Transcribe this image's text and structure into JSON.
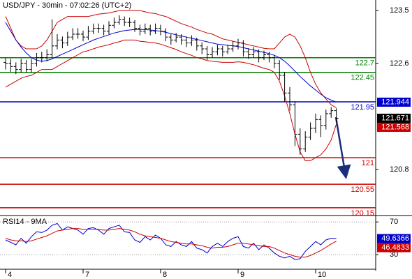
{
  "chart_data": [
    {
      "type": "ohlc",
      "title": "USD/JPY - 30min - 07:02:26 (UTC+2)",
      "categories": [
        "4",
        null,
        null,
        null,
        null,
        null,
        null,
        null,
        null,
        null,
        null,
        null,
        null,
        null,
        null,
        "7",
        null,
        null,
        null,
        null,
        null,
        null,
        null,
        null,
        null,
        null,
        null,
        null,
        null,
        null,
        "8",
        null,
        null,
        null,
        null,
        null,
        null,
        null,
        null,
        null,
        null,
        null,
        null,
        null,
        null,
        "9",
        null,
        null,
        null,
        null,
        null,
        null,
        null,
        null,
        null,
        null,
        null,
        null,
        null,
        null,
        "10",
        null,
        null,
        null,
        null
      ],
      "ohlc": [
        [
          122.62,
          122.7,
          122.5,
          122.6
        ],
        [
          122.6,
          122.68,
          122.46,
          122.55
        ],
        [
          122.55,
          122.62,
          122.42,
          122.5
        ],
        [
          122.5,
          122.68,
          122.44,
          122.6
        ],
        [
          122.6,
          122.66,
          122.44,
          122.5
        ],
        [
          122.5,
          122.68,
          122.44,
          122.6
        ],
        [
          122.6,
          122.78,
          122.55,
          122.7
        ],
        [
          122.7,
          122.8,
          122.62,
          122.7
        ],
        [
          122.7,
          122.84,
          122.64,
          122.75
        ],
        [
          122.75,
          123.35,
          122.7,
          122.9
        ],
        [
          122.9,
          123.1,
          122.84,
          123.0
        ],
        [
          123.0,
          123.06,
          122.86,
          122.95
        ],
        [
          122.95,
          123.14,
          122.9,
          123.05
        ],
        [
          123.05,
          123.2,
          123.0,
          123.1
        ],
        [
          123.1,
          123.2,
          123.02,
          123.1
        ],
        [
          123.1,
          123.16,
          122.98,
          123.05
        ],
        [
          123.05,
          123.24,
          123.0,
          123.15
        ],
        [
          123.15,
          123.28,
          123.1,
          123.2
        ],
        [
          123.2,
          123.28,
          123.12,
          123.2
        ],
        [
          123.2,
          123.26,
          123.08,
          123.15
        ],
        [
          123.15,
          123.32,
          123.1,
          123.25
        ],
        [
          123.25,
          123.38,
          123.2,
          123.3
        ],
        [
          123.3,
          123.42,
          123.26,
          123.35
        ],
        [
          123.35,
          123.4,
          123.24,
          123.3
        ],
        [
          123.3,
          123.38,
          123.22,
          123.3
        ],
        [
          123.3,
          123.34,
          123.14,
          123.2
        ],
        [
          123.2,
          123.26,
          123.08,
          123.15
        ],
        [
          123.15,
          123.28,
          123.1,
          123.2
        ],
        [
          123.2,
          123.26,
          123.08,
          123.15
        ],
        [
          123.15,
          123.28,
          123.1,
          123.2
        ],
        [
          123.2,
          123.26,
          123.08,
          123.15
        ],
        [
          123.15,
          123.2,
          122.98,
          123.05
        ],
        [
          123.05,
          123.1,
          122.92,
          123.0
        ],
        [
          123.0,
          123.12,
          122.96,
          123.05
        ],
        [
          123.05,
          123.1,
          122.92,
          123.0
        ],
        [
          123.0,
          123.06,
          122.88,
          122.95
        ],
        [
          122.95,
          123.08,
          122.9,
          123.0
        ],
        [
          123.0,
          123.04,
          122.82,
          122.9
        ],
        [
          122.9,
          122.96,
          122.76,
          122.85
        ],
        [
          122.85,
          122.9,
          122.66,
          122.75
        ],
        [
          122.75,
          122.88,
          122.7,
          122.8
        ],
        [
          122.8,
          122.92,
          122.74,
          122.85
        ],
        [
          122.85,
          122.9,
          122.72,
          122.8
        ],
        [
          122.8,
          122.92,
          122.76,
          122.85
        ],
        [
          122.85,
          122.98,
          122.8,
          122.9
        ],
        [
          122.9,
          123.02,
          122.84,
          122.95
        ],
        [
          122.95,
          123.0,
          122.72,
          122.8
        ],
        [
          122.8,
          122.86,
          122.68,
          122.75
        ],
        [
          122.75,
          122.88,
          122.7,
          122.8
        ],
        [
          122.8,
          122.84,
          122.62,
          122.7
        ],
        [
          122.7,
          122.82,
          122.66,
          122.75
        ],
        [
          122.75,
          122.8,
          122.62,
          122.7
        ],
        [
          122.7,
          122.74,
          122.52,
          122.6
        ],
        [
          122.6,
          122.66,
          122.32,
          122.4
        ],
        [
          122.4,
          122.46,
          121.95,
          122.1
        ],
        [
          122.1,
          122.2,
          121.8,
          121.9
        ],
        [
          121.9,
          121.96,
          121.2,
          121.4
        ],
        [
          121.4,
          121.5,
          121.05,
          121.15
        ],
        [
          121.15,
          121.45,
          121.1,
          121.35
        ],
        [
          121.35,
          121.6,
          121.3,
          121.5
        ],
        [
          121.5,
          121.75,
          121.42,
          121.65
        ],
        [
          121.65,
          121.72,
          121.35,
          121.55
        ],
        [
          121.55,
          121.82,
          121.48,
          121.75
        ],
        [
          121.75,
          121.86,
          121.68,
          121.8
        ],
        [
          121.8,
          121.84,
          121.6,
          121.671
        ]
      ],
      "ohlc_color": "#000000",
      "ohlc_last_value_box": true,
      "ylim": [
        120.03,
        123.68
      ],
      "yticks": [
        123.5,
        122.6,
        120.8
      ],
      "lines": [
        {
          "color": "#cc0000",
          "values": [
            123.4,
            123.2,
            123.0,
            122.9,
            122.85,
            122.85,
            122.85,
            122.9,
            123.0,
            123.15,
            123.3,
            123.35,
            123.4,
            123.4,
            123.4,
            123.4,
            123.4,
            123.42,
            123.44,
            123.45,
            123.46,
            123.48,
            123.5,
            123.5,
            123.5,
            123.5,
            123.5,
            123.48,
            123.46,
            123.45,
            123.42,
            123.4,
            123.36,
            123.32,
            123.28,
            123.25,
            123.22,
            123.18,
            123.15,
            123.12,
            123.1,
            123.06,
            123.02,
            123.0,
            122.98,
            122.96,
            122.94,
            122.92,
            122.9,
            122.88,
            122.86,
            122.85,
            122.85,
            122.95,
            123.05,
            123.1,
            123.05,
            122.9,
            122.7,
            122.45,
            122.25,
            122.1,
            122.0,
            121.9,
            121.85
          ],
          "last_value_box": false
        },
        {
          "color": "#cc0000",
          "values": [
            122.2,
            122.25,
            122.3,
            122.35,
            122.38,
            122.4,
            122.45,
            122.5,
            122.5,
            122.5,
            122.55,
            122.6,
            122.65,
            122.7,
            122.75,
            122.8,
            122.82,
            122.85,
            122.88,
            122.9,
            122.92,
            122.95,
            122.97,
            123.0,
            123.0,
            123.0,
            122.98,
            122.97,
            122.96,
            122.95,
            122.93,
            122.9,
            122.87,
            122.84,
            122.8,
            122.77,
            122.74,
            122.7,
            122.68,
            122.65,
            122.64,
            122.63,
            122.62,
            122.62,
            122.62,
            122.63,
            122.62,
            122.6,
            122.58,
            122.55,
            122.52,
            122.5,
            122.45,
            122.3,
            122.05,
            121.75,
            121.4,
            121.1,
            120.95,
            120.95,
            121.0,
            121.05,
            121.15,
            121.3,
            121.568
          ],
          "last_value_box": true
        },
        {
          "color": "#0000cc",
          "values": [
            123.3,
            123.15,
            123.0,
            122.88,
            122.78,
            122.7,
            122.66,
            122.64,
            122.65,
            122.68,
            122.72,
            122.76,
            122.8,
            122.84,
            122.88,
            122.92,
            122.96,
            123.0,
            123.03,
            123.06,
            123.09,
            123.12,
            123.14,
            123.16,
            123.17,
            123.18,
            123.18,
            123.18,
            123.17,
            123.16,
            123.15,
            123.13,
            123.11,
            123.09,
            123.07,
            123.05,
            123.03,
            123.01,
            122.99,
            122.97,
            122.95,
            122.93,
            122.92,
            122.91,
            122.9,
            122.89,
            122.87,
            122.85,
            122.83,
            122.81,
            122.79,
            122.77,
            122.74,
            122.7,
            122.64,
            122.56,
            122.47,
            122.38,
            122.3,
            122.22,
            122.15,
            122.08,
            122.02,
            121.98,
            121.944
          ],
          "last_value_box": true
        }
      ],
      "levels": [
        {
          "value": 122.7,
          "color": "#008000"
        },
        {
          "value": 122.45,
          "color": "#008000"
        },
        {
          "value": 121.95,
          "color": "#0000cc"
        },
        {
          "value": 121,
          "color": "#cc0000"
        },
        {
          "value": 120.55,
          "color": "#cc0000"
        },
        {
          "value": 120.15,
          "color": "#cc0000"
        }
      ]
    },
    {
      "type": "line",
      "title": "RSI14 - 9MA",
      "ylim": [
        13,
        77
      ],
      "yticks": [
        70,
        30
      ],
      "grid": true,
      "series": [
        {
          "color": "#0000cc",
          "values": [
            48,
            45,
            42,
            50,
            44,
            52,
            58,
            57,
            60,
            66,
            68,
            60,
            64,
            62,
            60,
            55,
            62,
            63,
            60,
            55,
            62,
            64,
            66,
            58,
            57,
            48,
            45,
            52,
            48,
            54,
            50,
            42,
            40,
            46,
            42,
            40,
            46,
            38,
            36,
            32,
            40,
            44,
            40,
            46,
            50,
            52,
            40,
            38,
            44,
            36,
            42,
            38,
            32,
            28,
            26,
            28,
            24,
            25,
            34,
            40,
            46,
            42,
            48,
            50,
            49.6366
          ],
          "last_value_box": true
        },
        {
          "color": "#cc0000",
          "values": [
            50,
            48,
            47,
            47,
            46,
            47,
            49,
            51,
            53,
            56,
            59,
            60,
            61,
            62,
            62,
            61,
            61,
            61,
            61,
            60,
            60,
            61,
            62,
            61,
            60,
            58,
            55,
            53,
            52,
            51,
            50,
            48,
            46,
            45,
            44,
            43,
            43,
            42,
            41,
            39,
            38,
            39,
            39,
            40,
            42,
            44,
            44,
            43,
            42,
            41,
            40,
            40,
            38,
            35,
            32,
            30,
            28,
            27,
            27,
            29,
            32,
            35,
            39,
            43,
            46.4833
          ],
          "last_value_box": true
        }
      ]
    }
  ]
}
